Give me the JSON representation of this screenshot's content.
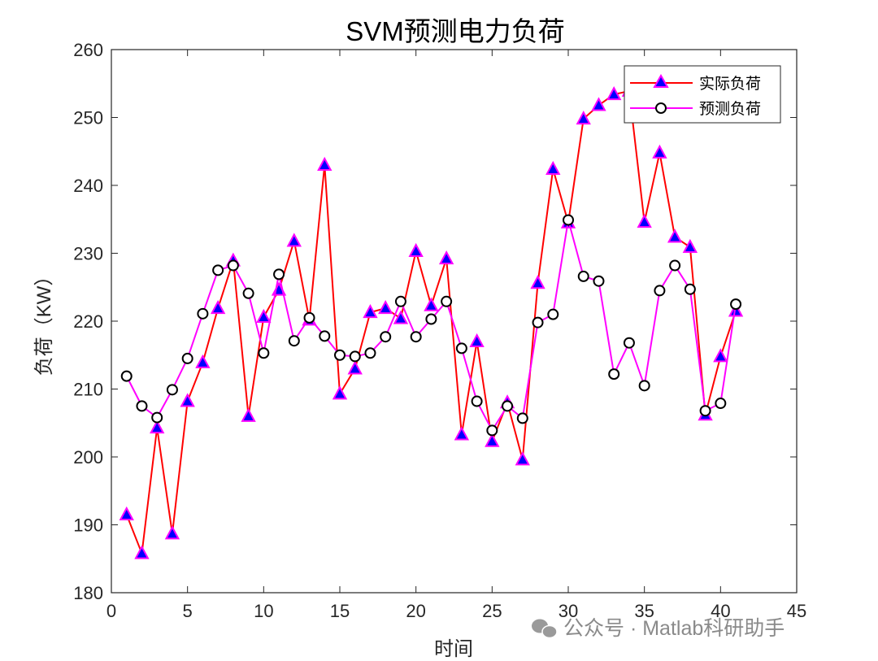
{
  "chart_data": {
    "type": "line",
    "title": "SVM预测电力负荷",
    "xlabel": "时间",
    "ylabel": "负荷（KW）",
    "xlim": [
      0,
      45
    ],
    "ylim": [
      180,
      260
    ],
    "xticks": [
      0,
      5,
      10,
      15,
      20,
      25,
      30,
      35,
      40,
      45
    ],
    "yticks": [
      180,
      190,
      200,
      210,
      220,
      230,
      240,
      250,
      260
    ],
    "grid": false,
    "legend_position": "top-right",
    "x": [
      1,
      2,
      3,
      4,
      5,
      6,
      7,
      8,
      9,
      10,
      11,
      12,
      13,
      14,
      15,
      16,
      17,
      18,
      19,
      20,
      21,
      22,
      23,
      24,
      25,
      26,
      27,
      28,
      29,
      30,
      31,
      32,
      33,
      34,
      35,
      36,
      37,
      38,
      39,
      40,
      41
    ],
    "series": [
      {
        "name": "实际负荷",
        "color": "#ff0000",
        "marker": "triangle",
        "marker_fill": "#0000ff",
        "marker_edge": "#ff00ff",
        "values": [
          191.5,
          185.8,
          204.3,
          188.7,
          208.2,
          213.9,
          221.9,
          228.9,
          206.0,
          220.6,
          224.6,
          231.8,
          220.2,
          243.0,
          209.3,
          213.0,
          221.3,
          221.9,
          220.4,
          230.3,
          222.3,
          229.2,
          203.3,
          217.0,
          202.3,
          208.0,
          199.6,
          225.6,
          242.4,
          234.5,
          249.8,
          251.8,
          253.4,
          253.9,
          234.6,
          244.8,
          232.4,
          230.9,
          206.2,
          214.8,
          221.5
        ]
      },
      {
        "name": "预测负荷",
        "color": "#ff00ff",
        "marker": "circle",
        "marker_fill": "#ffffff",
        "marker_edge": "#000000",
        "values": [
          211.9,
          207.5,
          205.8,
          209.9,
          214.5,
          221.1,
          227.5,
          228.2,
          224.1,
          215.3,
          226.9,
          217.1,
          220.5,
          217.8,
          215.0,
          214.8,
          215.3,
          217.7,
          222.9,
          217.7,
          220.3,
          222.9,
          216.0,
          208.2,
          203.9,
          207.5,
          205.7,
          219.8,
          221.0,
          234.9,
          226.6,
          225.9,
          212.2,
          216.8,
          210.5,
          224.5,
          228.2,
          224.7,
          206.8,
          207.9,
          222.5
        ]
      }
    ]
  },
  "watermark": {
    "text": "公众号 · Matlab科研助手",
    "icon": "wechat-icon"
  }
}
